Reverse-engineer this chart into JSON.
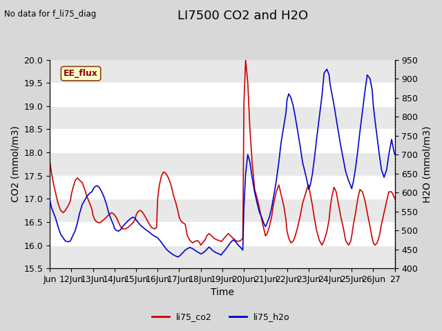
{
  "title": "LI7500 CO2 and H2O",
  "top_left_text": "No data for f_li75_diag",
  "box_label": "EE_flux",
  "xlabel": "Time",
  "ylabel_left": "CO2 (mmol/m3)",
  "ylabel_right": "H2O (mmol/m3)",
  "ylim_left": [
    15.5,
    20.0
  ],
  "ylim_right": [
    400,
    950
  ],
  "xtick_labels": [
    "Jun",
    "12Jun",
    "13Jun",
    "14Jun",
    "15Jun",
    "16Jun",
    "17Jun",
    "18Jun",
    "19Jun",
    "20Jun",
    "21Jun",
    "22Jun",
    "23Jun",
    "24Jun",
    "25Jun",
    "26Jun",
    "27"
  ],
  "color_co2": "#cc0000",
  "color_h2o": "#0000cc",
  "legend_labels": [
    "li75_co2",
    "li75_h2o"
  ],
  "bg_color": "#d8d8d8",
  "plot_bg_color": "#e8e8e8",
  "title_fontsize": 13,
  "label_fontsize": 10,
  "tick_fontsize": 9,
  "co2_data_x": [
    0.0,
    0.08,
    0.18,
    0.28,
    0.38,
    0.5,
    0.62,
    0.72,
    0.85,
    0.95,
    1.0,
    1.08,
    1.18,
    1.28,
    1.38,
    1.5,
    1.62,
    1.72,
    1.85,
    1.95,
    2.0,
    2.08,
    2.18,
    2.28,
    2.38,
    2.5,
    2.62,
    2.72,
    2.85,
    2.95,
    3.0,
    3.08,
    3.18,
    3.28,
    3.38,
    3.5,
    3.62,
    3.72,
    3.85,
    3.95,
    4.0,
    4.08,
    4.18,
    4.28,
    4.38,
    4.5,
    4.62,
    4.72,
    4.85,
    4.95,
    5.0,
    5.08,
    5.18,
    5.28,
    5.38,
    5.5,
    5.62,
    5.72,
    5.85,
    5.95,
    6.0,
    6.08,
    6.18,
    6.28,
    6.38,
    6.5,
    6.62,
    6.72,
    6.85,
    6.95,
    7.0,
    7.08,
    7.18,
    7.28,
    7.38,
    7.45,
    7.5,
    7.55,
    7.62,
    7.72,
    7.85,
    7.95,
    8.0,
    8.08,
    8.18,
    8.28,
    8.38,
    8.5,
    8.62,
    8.72,
    8.85,
    8.95,
    9.0,
    9.08,
    9.18,
    9.28,
    9.38,
    9.5,
    9.62,
    9.72,
    9.85,
    9.95,
    10.0,
    10.08,
    10.18,
    10.28,
    10.38,
    10.5,
    10.62,
    10.72,
    10.85,
    10.95,
    11.0,
    11.08,
    11.18,
    11.28,
    11.38,
    11.5,
    11.62,
    11.72,
    11.85,
    11.95,
    12.0,
    12.08,
    12.18,
    12.28,
    12.38,
    12.5,
    12.62,
    12.72,
    12.85,
    12.95,
    13.0,
    13.08,
    13.18,
    13.28,
    13.38,
    13.5,
    13.62,
    13.72,
    13.85,
    13.95,
    14.0,
    14.08,
    14.18,
    14.28,
    14.38,
    14.5,
    14.62,
    14.72,
    14.85,
    14.95,
    15.0,
    15.08,
    15.18,
    15.28,
    15.38,
    15.5,
    15.62,
    15.72,
    15.85,
    15.95,
    16.0
  ],
  "co2_data_y": [
    17.8,
    17.55,
    17.3,
    17.1,
    16.9,
    16.75,
    16.7,
    16.75,
    16.85,
    16.95,
    17.1,
    17.25,
    17.4,
    17.45,
    17.4,
    17.35,
    17.2,
    17.05,
    16.9,
    16.78,
    16.65,
    16.55,
    16.5,
    16.48,
    16.5,
    16.55,
    16.6,
    16.65,
    16.7,
    16.68,
    16.65,
    16.6,
    16.5,
    16.4,
    16.35,
    16.35,
    16.38,
    16.42,
    16.48,
    16.55,
    16.65,
    16.72,
    16.75,
    16.72,
    16.65,
    16.55,
    16.45,
    16.38,
    16.35,
    16.38,
    17.0,
    17.3,
    17.5,
    17.58,
    17.55,
    17.45,
    17.3,
    17.1,
    16.9,
    16.72,
    16.6,
    16.52,
    16.48,
    16.45,
    16.2,
    16.1,
    16.05,
    16.08,
    16.1,
    16.05,
    16.0,
    16.05,
    16.1,
    16.2,
    16.25,
    16.22,
    16.2,
    16.18,
    16.15,
    16.12,
    16.1,
    16.08,
    16.1,
    16.15,
    16.2,
    16.25,
    16.2,
    16.15,
    16.1,
    16.08,
    16.1,
    16.15,
    19.05,
    20.0,
    19.5,
    18.5,
    17.8,
    17.2,
    17.0,
    16.8,
    16.5,
    16.3,
    16.2,
    16.25,
    16.4,
    16.6,
    16.9,
    17.15,
    17.3,
    17.1,
    16.85,
    16.55,
    16.3,
    16.15,
    16.05,
    16.08,
    16.2,
    16.4,
    16.65,
    16.9,
    17.1,
    17.25,
    17.3,
    17.1,
    16.85,
    16.55,
    16.3,
    16.1,
    16.0,
    16.1,
    16.3,
    16.55,
    16.8,
    17.05,
    17.25,
    17.15,
    16.9,
    16.6,
    16.35,
    16.1,
    16.0,
    16.08,
    16.2,
    16.45,
    16.7,
    17.0,
    17.2,
    17.15,
    16.95,
    16.7,
    16.4,
    16.15,
    16.05,
    16.0,
    16.05,
    16.2,
    16.45,
    16.7,
    16.95,
    17.15,
    17.15,
    17.05,
    17.0
  ],
  "h2o_data_x": [
    0.0,
    0.08,
    0.18,
    0.28,
    0.38,
    0.5,
    0.62,
    0.72,
    0.85,
    0.95,
    1.0,
    1.08,
    1.18,
    1.28,
    1.38,
    1.5,
    1.62,
    1.72,
    1.85,
    1.95,
    2.0,
    2.08,
    2.18,
    2.28,
    2.38,
    2.5,
    2.62,
    2.72,
    2.85,
    2.95,
    3.0,
    3.08,
    3.18,
    3.28,
    3.38,
    3.5,
    3.62,
    3.72,
    3.85,
    3.95,
    4.0,
    4.08,
    4.18,
    4.28,
    4.38,
    4.5,
    4.62,
    4.72,
    4.85,
    4.95,
    5.0,
    5.08,
    5.18,
    5.28,
    5.38,
    5.5,
    5.62,
    5.72,
    5.85,
    5.95,
    6.0,
    6.08,
    6.18,
    6.28,
    6.38,
    6.5,
    6.62,
    6.72,
    6.85,
    6.95,
    7.0,
    7.08,
    7.18,
    7.28,
    7.38,
    7.45,
    7.5,
    7.55,
    7.62,
    7.72,
    7.85,
    7.95,
    8.0,
    8.08,
    8.18,
    8.28,
    8.38,
    8.5,
    8.62,
    8.72,
    8.85,
    8.95,
    9.0,
    9.08,
    9.18,
    9.28,
    9.38,
    9.5,
    9.62,
    9.72,
    9.85,
    9.95,
    10.0,
    10.08,
    10.18,
    10.28,
    10.38,
    10.5,
    10.62,
    10.72,
    10.85,
    10.95,
    11.0,
    11.08,
    11.18,
    11.28,
    11.38,
    11.5,
    11.62,
    11.72,
    11.85,
    11.95,
    12.0,
    12.08,
    12.18,
    12.28,
    12.38,
    12.5,
    12.62,
    12.72,
    12.85,
    12.95,
    13.0,
    13.08,
    13.18,
    13.28,
    13.38,
    13.5,
    13.62,
    13.72,
    13.85,
    13.95,
    14.0,
    14.08,
    14.18,
    14.28,
    14.38,
    14.5,
    14.62,
    14.72,
    14.85,
    14.95,
    15.0,
    15.08,
    15.18,
    15.28,
    15.38,
    15.5,
    15.62,
    15.72,
    15.85,
    15.95,
    16.0
  ],
  "h2o_data_y": [
    580,
    560,
    545,
    530,
    510,
    490,
    480,
    472,
    470,
    472,
    478,
    488,
    500,
    520,
    545,
    568,
    580,
    590,
    598,
    602,
    608,
    615,
    618,
    614,
    605,
    590,
    570,
    548,
    528,
    515,
    505,
    500,
    498,
    502,
    510,
    518,
    525,
    530,
    535,
    532,
    528,
    522,
    515,
    510,
    505,
    500,
    495,
    490,
    485,
    482,
    480,
    475,
    468,
    460,
    452,
    445,
    440,
    436,
    432,
    430,
    432,
    436,
    442,
    448,
    452,
    455,
    452,
    448,
    443,
    440,
    438,
    440,
    444,
    450,
    456,
    453,
    450,
    447,
    444,
    441,
    438,
    435,
    440,
    445,
    452,
    460,
    468,
    475,
    470,
    462,
    455,
    448,
    560,
    650,
    700,
    680,
    640,
    600,
    570,
    548,
    530,
    515,
    510,
    520,
    535,
    558,
    590,
    630,
    680,
    730,
    775,
    810,
    845,
    860,
    850,
    830,
    800,
    760,
    718,
    680,
    650,
    625,
    608,
    620,
    650,
    695,
    745,
    800,
    855,
    915,
    925,
    910,
    885,
    860,
    830,
    795,
    760,
    720,
    685,
    655,
    632,
    618,
    610,
    630,
    665,
    710,
    760,
    815,
    870,
    910,
    900,
    870,
    830,
    790,
    745,
    700,
    660,
    640,
    660,
    700,
    740,
    710,
    700
  ]
}
